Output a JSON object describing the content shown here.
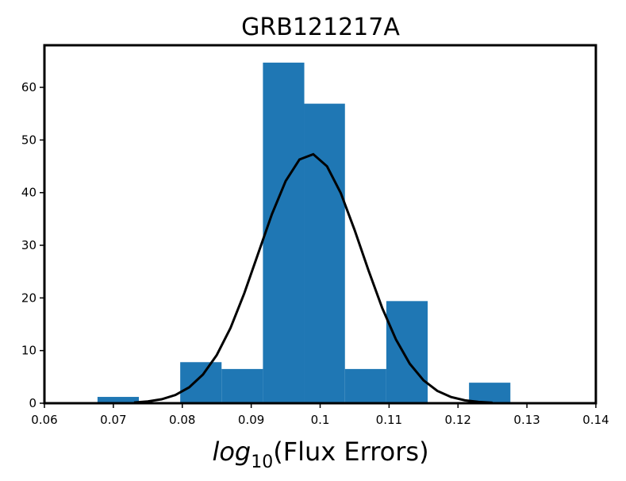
{
  "chart_data": {
    "type": "histogram",
    "title": "GRB121217A",
    "xlabel": {
      "func": "log",
      "sub": "10",
      "rest": "(Flux Errors)"
    },
    "bins": [
      0.0677,
      0.0737,
      0.0797,
      0.0857,
      0.0917,
      0.0977,
      0.1036,
      0.1096,
      0.1156,
      0.1216,
      0.1276
    ],
    "values": [
      1.2,
      0,
      7.8,
      6.5,
      64.7,
      56.9,
      6.5,
      19.4,
      0,
      3.9
    ],
    "color": "#1f77b4",
    "curve": {
      "color": "#000000",
      "x": [
        0.073,
        0.075,
        0.077,
        0.079,
        0.081,
        0.083,
        0.085,
        0.087,
        0.089,
        0.091,
        0.093,
        0.095,
        0.097,
        0.099,
        0.101,
        0.103,
        0.105,
        0.107,
        0.109,
        0.111,
        0.113,
        0.115,
        0.117,
        0.119,
        0.121,
        0.123,
        0.125
      ],
      "values": [
        0.14,
        0.34,
        0.75,
        1.56,
        3.02,
        5.45,
        9.15,
        14.3,
        20.9,
        28.4,
        35.9,
        42.2,
        46.3,
        47.3,
        45.0,
        39.9,
        32.9,
        25.3,
        18.1,
        12.1,
        7.5,
        4.34,
        2.34,
        1.17,
        0.55,
        0.24,
        0.1
      ]
    },
    "xlim": [
      0.06,
      0.14
    ],
    "xticks": [
      0.06,
      0.07,
      0.08,
      0.09,
      0.1,
      0.11,
      0.12,
      0.13,
      0.14
    ],
    "ylim": [
      0,
      68
    ],
    "yticks": [
      0,
      10,
      20,
      30,
      40,
      50,
      60
    ]
  }
}
